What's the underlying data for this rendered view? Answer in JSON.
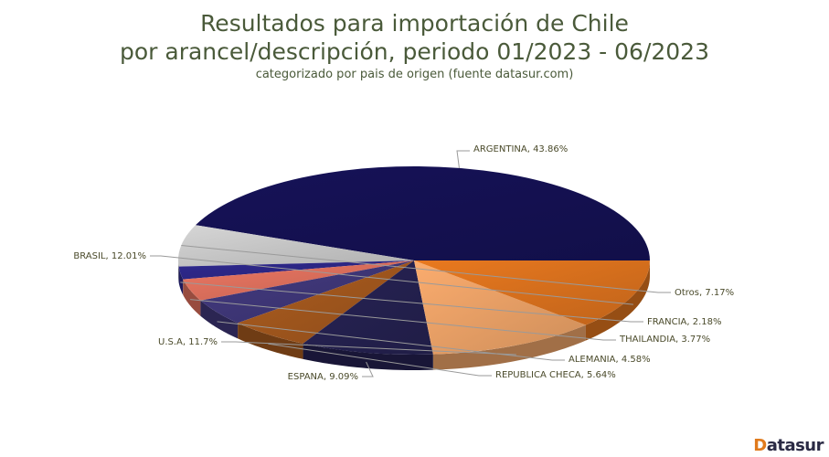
{
  "title_line1": "Resultados para importación de Chile",
  "title_line2": "por arancel/descripción, periodo 01/2023 - 06/2023",
  "subtitle": "categorizado por pais de origen (fuente datasur.com)",
  "brand": {
    "first": "D",
    "rest": "atasur"
  },
  "chart_data": {
    "type": "pie",
    "title": "Resultados para importación de Chile por arancel/descripción, periodo 01/2023 - 06/2023",
    "subtitle": "categorizado por pais de origen (fuente datasur.com)",
    "style": "3d",
    "categories": [
      "ARGENTINA",
      "Otros",
      "FRANCIA",
      "THAILANDIA",
      "ALEMANIA",
      "REPUBLICA CHECA",
      "ESPANA",
      "U.S.A",
      "BRASIL"
    ],
    "values": [
      43.86,
      7.17,
      2.18,
      3.77,
      4.58,
      5.64,
      9.09,
      11.7,
      12.01
    ],
    "labels": [
      "ARGENTINA, 43.86%",
      "Otros, 7.17%",
      "FRANCIA, 2.18%",
      "THAILANDIA, 3.77%",
      "ALEMANIA, 4.58%",
      "REPUBLICA CHECA, 5.64%",
      "ESPANA, 9.09%",
      "U.S.A, 11.7%",
      "BRASIL, 12.01%"
    ],
    "colors": [
      "#14104f",
      "#bfbfbf",
      "#2a2580",
      "#d36a58",
      "#3c3472",
      "#9a531c",
      "#231f4c",
      "#e09a62",
      "#d06c1c"
    ]
  }
}
